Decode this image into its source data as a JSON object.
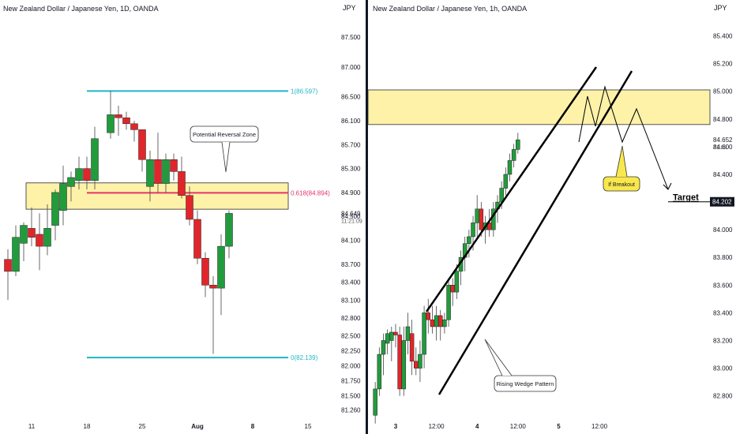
{
  "colors": {
    "up": "#229b3c",
    "down": "#e0262b",
    "zone_fill": "#fdf2a8",
    "zone_stroke": "#2b2b2b",
    "level_line": "#1fb5c9",
    "fib_line": "#e6336a",
    "axis_text": "#131722",
    "callout_fill": "#f9e84d"
  },
  "chart_data": [
    {
      "type": "candlestick",
      "title": "New Zealand Dollar / Japanese Yen, 1D, OANDA",
      "currency": "JPY",
      "y_ticks": [
        "87.500",
        "87.000",
        "86.500",
        "86.100",
        "85.700",
        "85.300",
        "84.900",
        "84.500",
        "84.100",
        "83.700",
        "83.400",
        "83.100",
        "82.800",
        "82.500",
        "82.250",
        "82.000",
        "81.750",
        "81.500",
        "81.260"
      ],
      "ylim": [
        81.15,
        87.75
      ],
      "x_ticks": [
        "11",
        "18",
        "25",
        "Aug",
        "8",
        "15"
      ],
      "x_tick_index": [
        4,
        11,
        18,
        25,
        32,
        39
      ],
      "x_range": [
        0,
        42
      ],
      "price_label": "84.649",
      "countdown_label": "11:21:09",
      "candles": [
        {
          "o": 83.78,
          "h": 83.95,
          "l": 83.1,
          "c": 83.58
        },
        {
          "o": 83.58,
          "h": 84.35,
          "l": 83.5,
          "c": 84.15
        },
        {
          "o": 84.05,
          "h": 84.4,
          "l": 83.75,
          "c": 84.35
        },
        {
          "o": 84.3,
          "h": 84.65,
          "l": 84.0,
          "c": 84.15
        },
        {
          "o": 84.2,
          "h": 84.55,
          "l": 83.6,
          "c": 84.0
        },
        {
          "o": 84.0,
          "h": 84.7,
          "l": 83.85,
          "c": 84.3
        },
        {
          "o": 84.35,
          "h": 84.95,
          "l": 84.1,
          "c": 84.9
        },
        {
          "o": 84.6,
          "h": 85.35,
          "l": 84.35,
          "c": 85.05
        },
        {
          "o": 85.0,
          "h": 85.25,
          "l": 84.75,
          "c": 85.15
        },
        {
          "o": 85.1,
          "h": 85.5,
          "l": 84.95,
          "c": 85.3
        },
        {
          "o": 85.3,
          "h": 85.5,
          "l": 84.95,
          "c": 85.1
        },
        {
          "o": 85.1,
          "h": 86.0,
          "l": 84.95,
          "c": 85.8
        },
        {
          "o": 85.9,
          "h": 86.6,
          "l": 85.8,
          "c": 86.2
        },
        {
          "o": 86.2,
          "h": 86.35,
          "l": 85.85,
          "c": 86.15
        },
        {
          "o": 86.15,
          "h": 86.25,
          "l": 85.95,
          "c": 86.05
        },
        {
          "o": 86.05,
          "h": 86.1,
          "l": 85.75,
          "c": 85.95
        },
        {
          "o": 85.95,
          "h": 85.9,
          "l": 85.25,
          "c": 85.45
        },
        {
          "o": 85.0,
          "h": 85.6,
          "l": 84.75,
          "c": 85.45
        },
        {
          "o": 85.45,
          "h": 85.9,
          "l": 84.9,
          "c": 85.05
        },
        {
          "o": 85.05,
          "h": 85.55,
          "l": 84.9,
          "c": 85.45
        },
        {
          "o": 85.45,
          "h": 85.55,
          "l": 85.1,
          "c": 85.25
        },
        {
          "o": 85.25,
          "h": 85.5,
          "l": 84.8,
          "c": 84.85
        },
        {
          "o": 84.85,
          "h": 85.0,
          "l": 84.35,
          "c": 84.45
        },
        {
          "o": 84.45,
          "h": 84.6,
          "l": 83.7,
          "c": 83.8
        },
        {
          "o": 83.8,
          "h": 83.9,
          "l": 83.15,
          "c": 83.35
        },
        {
          "o": 83.35,
          "h": 83.5,
          "l": 82.2,
          "c": 83.3
        },
        {
          "o": 83.3,
          "h": 84.2,
          "l": 82.85,
          "c": 84.0
        },
        {
          "o": 84.0,
          "h": 84.6,
          "l": 83.8,
          "c": 84.55
        }
      ],
      "candle_x": [
        1,
        2,
        3,
        4,
        5,
        6,
        7,
        8,
        9,
        10,
        11,
        12,
        14,
        15,
        16,
        17,
        18,
        19,
        20,
        21,
        22,
        23,
        24,
        25,
        26,
        27,
        28,
        29
      ],
      "levels": [
        {
          "label": "1(86.597)",
          "value": 86.597,
          "x_start": 11
        },
        {
          "label": "0.618(84.894)",
          "value": 84.894,
          "x_start": 11
        },
        {
          "label": "0(82.139)",
          "value": 82.139,
          "x_start": 11
        }
      ],
      "zone": {
        "low": 84.62,
        "high": 85.06
      },
      "annotation": "Potential Reversal Zone"
    },
    {
      "type": "candlestick",
      "title": "New Zealand Dollar / Japanese Yen, 1h, OANDA",
      "currency": "JPY",
      "y_ticks": [
        "85.400",
        "85.200",
        "85.000",
        "84.800",
        "84.600",
        "84.400",
        "84.200",
        "84.000",
        "83.800",
        "83.600",
        "83.400",
        "83.200",
        "83.000",
        "82.800"
      ],
      "ylim": [
        82.65,
        85.5
      ],
      "x_ticks": [
        "3",
        "12:00",
        "4",
        "12:00",
        "5",
        "12:00"
      ],
      "x_tick_index": [
        6,
        16,
        26,
        36,
        46,
        56
      ],
      "x_range": [
        0,
        62
      ],
      "price_label": "84.652",
      "countdown_label": "21:09",
      "target_price_label": "84.202",
      "candles": [
        {
          "o": 82.66,
          "h": 82.9,
          "l": 82.6,
          "c": 82.85
        },
        {
          "o": 82.85,
          "h": 83.15,
          "l": 82.8,
          "c": 83.1
        },
        {
          "o": 83.1,
          "h": 83.25,
          "l": 82.95,
          "c": 83.2
        },
        {
          "o": 83.18,
          "h": 83.28,
          "l": 83.1,
          "c": 83.25
        },
        {
          "o": 83.2,
          "h": 83.3,
          "l": 83.05,
          "c": 83.26
        },
        {
          "o": 83.26,
          "h": 83.32,
          "l": 83.15,
          "c": 83.24
        },
        {
          "o": 83.24,
          "h": 83.3,
          "l": 82.8,
          "c": 82.85
        },
        {
          "o": 82.85,
          "h": 83.3,
          "l": 82.8,
          "c": 83.2
        },
        {
          "o": 83.2,
          "h": 83.4,
          "l": 83.1,
          "c": 83.3
        },
        {
          "o": 83.25,
          "h": 83.35,
          "l": 82.95,
          "c": 83.05
        },
        {
          "o": 83.05,
          "h": 83.15,
          "l": 82.95,
          "c": 83.0
        },
        {
          "o": 83.0,
          "h": 83.2,
          "l": 82.9,
          "c": 83.1
        },
        {
          "o": 83.1,
          "h": 83.45,
          "l": 83.0,
          "c": 83.4
        },
        {
          "o": 83.4,
          "h": 83.5,
          "l": 83.25,
          "c": 83.35
        },
        {
          "o": 83.35,
          "h": 83.45,
          "l": 83.25,
          "c": 83.3
        },
        {
          "o": 83.3,
          "h": 83.45,
          "l": 83.2,
          "c": 83.38
        },
        {
          "o": 83.38,
          "h": 83.42,
          "l": 83.2,
          "c": 83.3
        },
        {
          "o": 83.3,
          "h": 83.4,
          "l": 83.25,
          "c": 83.35
        },
        {
          "o": 83.35,
          "h": 83.65,
          "l": 83.3,
          "c": 83.6
        },
        {
          "o": 83.6,
          "h": 83.65,
          "l": 83.45,
          "c": 83.55
        },
        {
          "o": 83.55,
          "h": 83.75,
          "l": 83.5,
          "c": 83.7
        },
        {
          "o": 83.7,
          "h": 83.85,
          "l": 83.6,
          "c": 83.8
        },
        {
          "o": 83.8,
          "h": 83.95,
          "l": 83.7,
          "c": 83.9
        },
        {
          "o": 83.9,
          "h": 84.0,
          "l": 83.8,
          "c": 83.95
        },
        {
          "o": 83.95,
          "h": 84.1,
          "l": 83.85,
          "c": 84.05
        },
        {
          "o": 84.05,
          "h": 84.25,
          "l": 83.95,
          "c": 84.15
        },
        {
          "o": 84.15,
          "h": 84.2,
          "l": 83.95,
          "c": 84.0
        },
        {
          "o": 84.0,
          "h": 84.1,
          "l": 83.9,
          "c": 84.05
        },
        {
          "o": 84.05,
          "h": 84.15,
          "l": 83.95,
          "c": 84.0
        },
        {
          "o": 84.0,
          "h": 84.2,
          "l": 83.95,
          "c": 84.15
        },
        {
          "o": 84.15,
          "h": 84.25,
          "l": 84.05,
          "c": 84.2
        },
        {
          "o": 84.2,
          "h": 84.35,
          "l": 84.15,
          "c": 84.3
        },
        {
          "o": 84.3,
          "h": 84.45,
          "l": 84.25,
          "c": 84.4
        },
        {
          "o": 84.4,
          "h": 84.55,
          "l": 84.35,
          "c": 84.5
        },
        {
          "o": 84.5,
          "h": 84.62,
          "l": 84.45,
          "c": 84.58
        },
        {
          "o": 84.58,
          "h": 84.7,
          "l": 84.55,
          "c": 84.65
        }
      ],
      "candle_x": [
        1,
        2,
        3,
        4,
        5,
        6,
        7,
        8,
        9,
        10,
        11,
        12,
        13,
        14,
        15,
        16,
        17,
        18,
        19,
        20,
        21,
        22,
        23,
        24,
        25,
        26,
        27,
        28,
        29,
        30,
        31,
        32,
        33,
        34,
        35,
        36
      ],
      "zone": {
        "low": 84.76,
        "high": 85.01
      },
      "wedge_label": "Rising Wedge Pattern",
      "breakout_label": "If Breakout",
      "target_label": "Target"
    }
  ]
}
